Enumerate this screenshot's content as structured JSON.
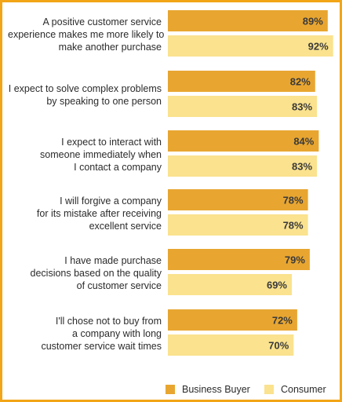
{
  "chart_data": {
    "type": "bar",
    "orientation": "horizontal",
    "categories": [
      "A positive customer service experience makes me more likely to make another purchase",
      "I expect to solve complex problems by speaking to one person",
      "I expect to interact with someone immediately when I contact a company",
      "I will forgive a company for its mistake after receiving excellent service",
      "I have made purchase decisions based on the quality of customer service",
      "I'll chose not to buy from a company with long customer service wait times"
    ],
    "category_lines": [
      [
        "A positive customer service",
        "experience makes me more likely to",
        "make another purchase"
      ],
      [
        "I expect to solve complex problems",
        "by speaking to one person"
      ],
      [
        "I expect to interact with",
        "someone immediately when",
        "I contact a company"
      ],
      [
        "I will forgive a company",
        "for its mistake after receiving",
        "excellent service"
      ],
      [
        "I have made purchase",
        "decisions based on the quality",
        "of customer service"
      ],
      [
        "I'll chose not to buy from",
        "a company with long",
        "customer service wait times"
      ]
    ],
    "series": [
      {
        "name": "Business Buyer",
        "values": [
          89,
          82,
          84,
          78,
          79,
          72
        ],
        "labels": [
          "89%",
          "82%",
          "84%",
          "78%",
          "79%",
          "72%"
        ],
        "color": "#e8a631"
      },
      {
        "name": "Consumer",
        "values": [
          92,
          83,
          83,
          78,
          69,
          70
        ],
        "labels": [
          "92%",
          "83%",
          "83%",
          "78%",
          "69%",
          "70%"
        ],
        "color": "#fae28e"
      }
    ],
    "xlim": [
      0,
      100
    ],
    "grid": false,
    "legend_position": "bottom-right"
  },
  "colors": {
    "border": "#f2a516",
    "text": "#2b2b2b"
  }
}
